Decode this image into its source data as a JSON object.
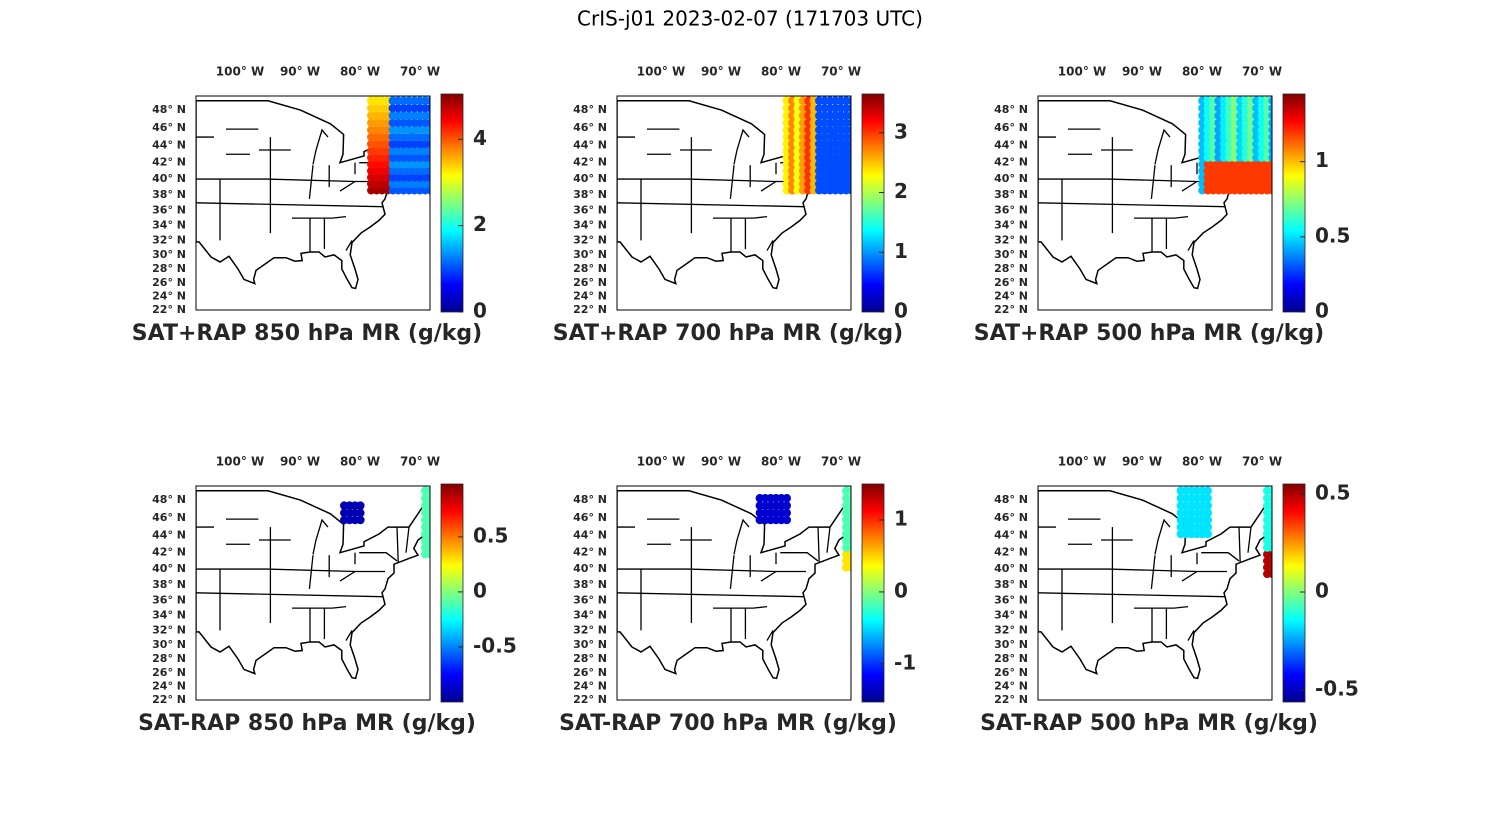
{
  "title": "CrIS-j01 2023-02-07 (171703 UTC)",
  "map": {
    "xlim": [
      -107,
      -68
    ],
    "ylim": [
      22,
      49.5
    ],
    "xticks": [
      {
        "value": -100,
        "label": "100° W"
      },
      {
        "value": -90,
        "label": "90° W"
      },
      {
        "value": -80,
        "label": "80° W"
      },
      {
        "value": -70,
        "label": "70° W"
      }
    ],
    "yticks": [
      {
        "value": 22,
        "label": "22° N"
      },
      {
        "value": 24,
        "label": "24° N"
      },
      {
        "value": 26,
        "label": "26° N"
      },
      {
        "value": 28,
        "label": "28° N"
      },
      {
        "value": 30,
        "label": "30° N"
      },
      {
        "value": 32,
        "label": "32° N"
      },
      {
        "value": 34,
        "label": "34° N"
      },
      {
        "value": 36,
        "label": "36° N"
      },
      {
        "value": 38,
        "label": "38° N"
      },
      {
        "value": 40,
        "label": "40° N"
      },
      {
        "value": 42,
        "label": "42° N"
      },
      {
        "value": 44,
        "label": "44° N"
      },
      {
        "value": 46,
        "label": "46° N"
      },
      {
        "value": 48,
        "label": "48° N"
      }
    ]
  },
  "panels": [
    {
      "title": "SAT+RAP 850 hPa MR (g/kg)",
      "clim": [
        0,
        5.05
      ],
      "cticks": [
        0,
        2,
        4
      ]
    },
    {
      "title": "SAT+RAP 700 hPa MR (g/kg)",
      "clim": [
        0,
        3.65
      ],
      "cticks": [
        0,
        1,
        2,
        3
      ]
    },
    {
      "title": "SAT+RAP 500 hPa MR (g/kg)",
      "clim": [
        0,
        1.45
      ],
      "cticks": [
        0,
        0.5,
        1
      ]
    },
    {
      "title": "SAT-RAP 850 hPa MR (g/kg)",
      "clim": [
        -1,
        0.98
      ],
      "cticks": [
        -0.5,
        0,
        0.5
      ]
    },
    {
      "title": "SAT-RAP 700 hPa MR (g/kg)",
      "clim": [
        -1.53,
        1.5
      ],
      "cticks": [
        -1,
        0,
        1
      ]
    },
    {
      "title": "SAT-RAP 500 hPa MR (g/kg)",
      "clim": [
        -0.56,
        0.55
      ],
      "cticks": [
        -0.5,
        0,
        0.5
      ]
    }
  ]
}
